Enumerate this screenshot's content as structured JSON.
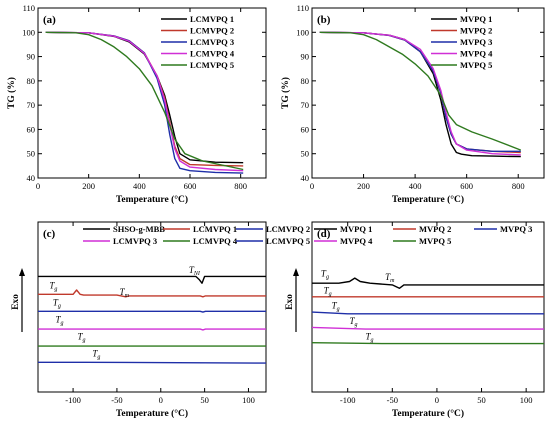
{
  "colors": {
    "black": "#000000",
    "red": "#c0392b",
    "blue": "#1f2fa8",
    "magenta": "#d02fd6",
    "green": "#2f7a1f"
  },
  "chart_data": [
    {
      "panel": "(a)",
      "type": "line",
      "xlabel": "Temperature (°C)",
      "ylabel": "TG (%)",
      "xlim": [
        0,
        900
      ],
      "ylim": [
        40,
        110
      ],
      "xticks": [
        0,
        200,
        400,
        600,
        800
      ],
      "yticks": [
        40,
        50,
        60,
        70,
        80,
        90,
        100,
        110
      ],
      "legend_position": "top-right",
      "series": [
        {
          "name": "LCMVPQ 1",
          "color": "#000000",
          "x": [
            30,
            200,
            300,
            360,
            420,
            470,
            500,
            520,
            540,
            560,
            600,
            700,
            810
          ],
          "y": [
            100,
            99.8,
            98.3,
            96,
            91,
            82,
            74,
            66,
            57,
            50,
            47.5,
            46.5,
            46.3
          ]
        },
        {
          "name": "LCMVPQ 2",
          "color": "#c0392b",
          "x": [
            30,
            200,
            300,
            360,
            420,
            470,
            500,
            520,
            540,
            560,
            600,
            700,
            810
          ],
          "y": [
            100,
            99.8,
            98.5,
            96.5,
            91.5,
            82,
            73,
            63,
            53,
            48,
            45.5,
            45.2,
            45
          ]
        },
        {
          "name": "LCMVPQ 3",
          "color": "#1f2fa8",
          "x": [
            30,
            200,
            300,
            360,
            420,
            470,
            500,
            520,
            540,
            560,
            600,
            700,
            810
          ],
          "y": [
            100,
            99.8,
            98.5,
            96.5,
            91.5,
            81,
            70,
            58,
            48,
            44,
            43,
            42.3,
            42
          ]
        },
        {
          "name": "LCMVPQ 4",
          "color": "#d02fd6",
          "x": [
            30,
            200,
            300,
            360,
            420,
            470,
            500,
            520,
            540,
            560,
            600,
            700,
            810
          ],
          "y": [
            100,
            99.8,
            98.4,
            96.3,
            91.3,
            82,
            72,
            62,
            52,
            47,
            44.5,
            43.5,
            43
          ]
        },
        {
          "name": "LCMVPQ 5",
          "color": "#2f7a1f",
          "x": [
            30,
            150,
            200,
            250,
            300,
            350,
            400,
            450,
            500,
            540,
            580,
            650,
            810
          ],
          "y": [
            100,
            99.8,
            99,
            97,
            94,
            90,
            85,
            78,
            67,
            56,
            50,
            47,
            43.5
          ]
        }
      ]
    },
    {
      "panel": "(b)",
      "type": "line",
      "xlabel": "Temperature (°C)",
      "ylabel": "TG (%)",
      "xlim": [
        0,
        900
      ],
      "ylim": [
        40,
        110
      ],
      "xticks": [
        0,
        200,
        400,
        600,
        800
      ],
      "yticks": [
        40,
        50,
        60,
        70,
        80,
        90,
        100,
        110
      ],
      "legend_position": "top-right",
      "series": [
        {
          "name": "MVPQ 1",
          "color": "#000000",
          "x": [
            30,
            200,
            300,
            360,
            420,
            470,
            500,
            520,
            540,
            560,
            580,
            620,
            700,
            810
          ],
          "y": [
            100,
            99.8,
            98.8,
            97,
            92,
            83,
            72,
            62,
            54,
            50.5,
            49.8,
            49.2,
            49,
            48.8
          ]
        },
        {
          "name": "MVPQ 2",
          "color": "#c0392b",
          "x": [
            30,
            200,
            300,
            360,
            420,
            470,
            500,
            520,
            540,
            560,
            600,
            700,
            810
          ],
          "y": [
            100,
            99.8,
            98.7,
            96.8,
            92,
            84,
            75,
            65,
            58,
            54,
            52,
            51,
            50.5
          ]
        },
        {
          "name": "MVPQ 3",
          "color": "#1f2fa8",
          "x": [
            30,
            200,
            300,
            360,
            420,
            470,
            500,
            520,
            540,
            560,
            600,
            700,
            810
          ],
          "y": [
            100,
            99.8,
            98.7,
            96.8,
            92,
            84,
            75,
            65,
            58,
            54,
            52,
            51,
            51
          ]
        },
        {
          "name": "MVPQ 4",
          "color": "#d02fd6",
          "x": [
            30,
            200,
            300,
            360,
            420,
            470,
            500,
            520,
            540,
            560,
            600,
            700,
            810
          ],
          "y": [
            100,
            99.8,
            98.8,
            97,
            93,
            85,
            76,
            67,
            59,
            54,
            51.5,
            50,
            49.5
          ]
        },
        {
          "name": "MVPQ 5",
          "color": "#2f7a1f",
          "x": [
            30,
            150,
            200,
            250,
            300,
            350,
            400,
            450,
            500,
            530,
            560,
            620,
            700,
            810
          ],
          "y": [
            100,
            99.8,
            99,
            97,
            94,
            91,
            87,
            82,
            74,
            66,
            62,
            59,
            56,
            51.5
          ]
        }
      ]
    },
    {
      "panel": "(c)",
      "type": "line",
      "xlabel": "Temperature (°C)",
      "ylabel": "Exo",
      "xlim": [
        -140,
        120
      ],
      "ylim": [
        0,
        1
      ],
      "xticks": [
        -100,
        -50,
        0,
        50,
        100
      ],
      "legend_position": "top",
      "series": [
        {
          "name": "SHSO-g-MBB",
          "color": "#000000",
          "x": [
            -140,
            20,
            40,
            44,
            47,
            50,
            120
          ],
          "y": [
            0.68,
            0.68,
            0.68,
            0.66,
            0.64,
            0.68,
            0.68
          ]
        },
        {
          "name": "LCMVPQ 1",
          "color": "#c0392b",
          "x": [
            -140,
            -100,
            -96,
            -92,
            -88,
            -50,
            -40,
            -36,
            0,
            45,
            48,
            51,
            120
          ],
          "y": [
            0.575,
            0.575,
            0.6,
            0.575,
            0.57,
            0.57,
            0.56,
            0.565,
            0.565,
            0.565,
            0.56,
            0.565,
            0.565
          ]
        },
        {
          "name": "LCMVPQ 2",
          "color": "#1f2fa8",
          "x": [
            -140,
            45,
            48,
            51,
            120
          ],
          "y": [
            0.475,
            0.475,
            0.47,
            0.475,
            0.475
          ]
        },
        {
          "name": "LCMVPQ 3",
          "color": "#d02fd6",
          "x": [
            -140,
            45,
            48,
            51,
            120
          ],
          "y": [
            0.37,
            0.37,
            0.365,
            0.37,
            0.37
          ]
        },
        {
          "name": "LCMVPQ 4",
          "color": "#2f7a1f",
          "x": [
            -140,
            120
          ],
          "y": [
            0.27,
            0.27
          ]
        },
        {
          "name": "LCMVPQ 5",
          "color": "#1f2fa8",
          "x": [
            -140,
            -85,
            120
          ],
          "y": [
            0.175,
            0.175,
            0.17
          ]
        }
      ],
      "annotations": [
        {
          "text": "T",
          "sub": "g",
          "x": -127,
          "y": 0.61
        },
        {
          "text": "T",
          "sub": "g",
          "x": -123,
          "y": 0.51
        },
        {
          "text": "T",
          "sub": "g",
          "x": -120,
          "y": 0.41
        },
        {
          "text": "T",
          "sub": "g",
          "x": -95,
          "y": 0.31
        },
        {
          "text": "T",
          "sub": "g",
          "x": -78,
          "y": 0.21
        },
        {
          "text": "T",
          "sub": "m",
          "x": -47,
          "y": 0.57
        },
        {
          "text": "T",
          "sub": "NI",
          "x": 32,
          "y": 0.7
        }
      ]
    },
    {
      "panel": "(d)",
      "type": "line",
      "xlabel": "Temperature (°C)",
      "ylabel": "Exo",
      "xlim": [
        -140,
        120
      ],
      "ylim": [
        0,
        1
      ],
      "xticks": [
        -100,
        -50,
        0,
        50,
        100
      ],
      "legend_position": "top",
      "series": [
        {
          "name": "MVPQ 1",
          "color": "#000000",
          "x": [
            -140,
            -110,
            -98,
            -92,
            -86,
            -75,
            -50,
            -42,
            -37,
            0,
            120
          ],
          "y": [
            0.64,
            0.64,
            0.65,
            0.67,
            0.65,
            0.64,
            0.63,
            0.61,
            0.63,
            0.63,
            0.63
          ]
        },
        {
          "name": "MVPQ 2",
          "color": "#c0392b",
          "x": [
            -140,
            120
          ],
          "y": [
            0.56,
            0.56
          ]
        },
        {
          "name": "MVPQ 3",
          "color": "#1f2fa8",
          "x": [
            -140,
            -100,
            120
          ],
          "y": [
            0.47,
            0.46,
            0.46
          ]
        },
        {
          "name": "MVPQ 4",
          "color": "#d02fd6",
          "x": [
            -140,
            -80,
            120
          ],
          "y": [
            0.38,
            0.37,
            0.37
          ]
        },
        {
          "name": "MVPQ 5",
          "color": "#2f7a1f",
          "x": [
            -140,
            -60,
            120
          ],
          "y": [
            0.29,
            0.285,
            0.285
          ]
        }
      ],
      "annotations": [
        {
          "text": "T",
          "sub": "g",
          "x": -130,
          "y": 0.68
        },
        {
          "text": "T",
          "sub": "m",
          "x": -58,
          "y": 0.66
        },
        {
          "text": "T",
          "sub": "g",
          "x": -127,
          "y": 0.58
        },
        {
          "text": "T",
          "sub": "g",
          "x": -118,
          "y": 0.49
        },
        {
          "text": "T",
          "sub": "g",
          "x": -98,
          "y": 0.4
        },
        {
          "text": "T",
          "sub": "g",
          "x": -80,
          "y": 0.31
        }
      ]
    }
  ]
}
